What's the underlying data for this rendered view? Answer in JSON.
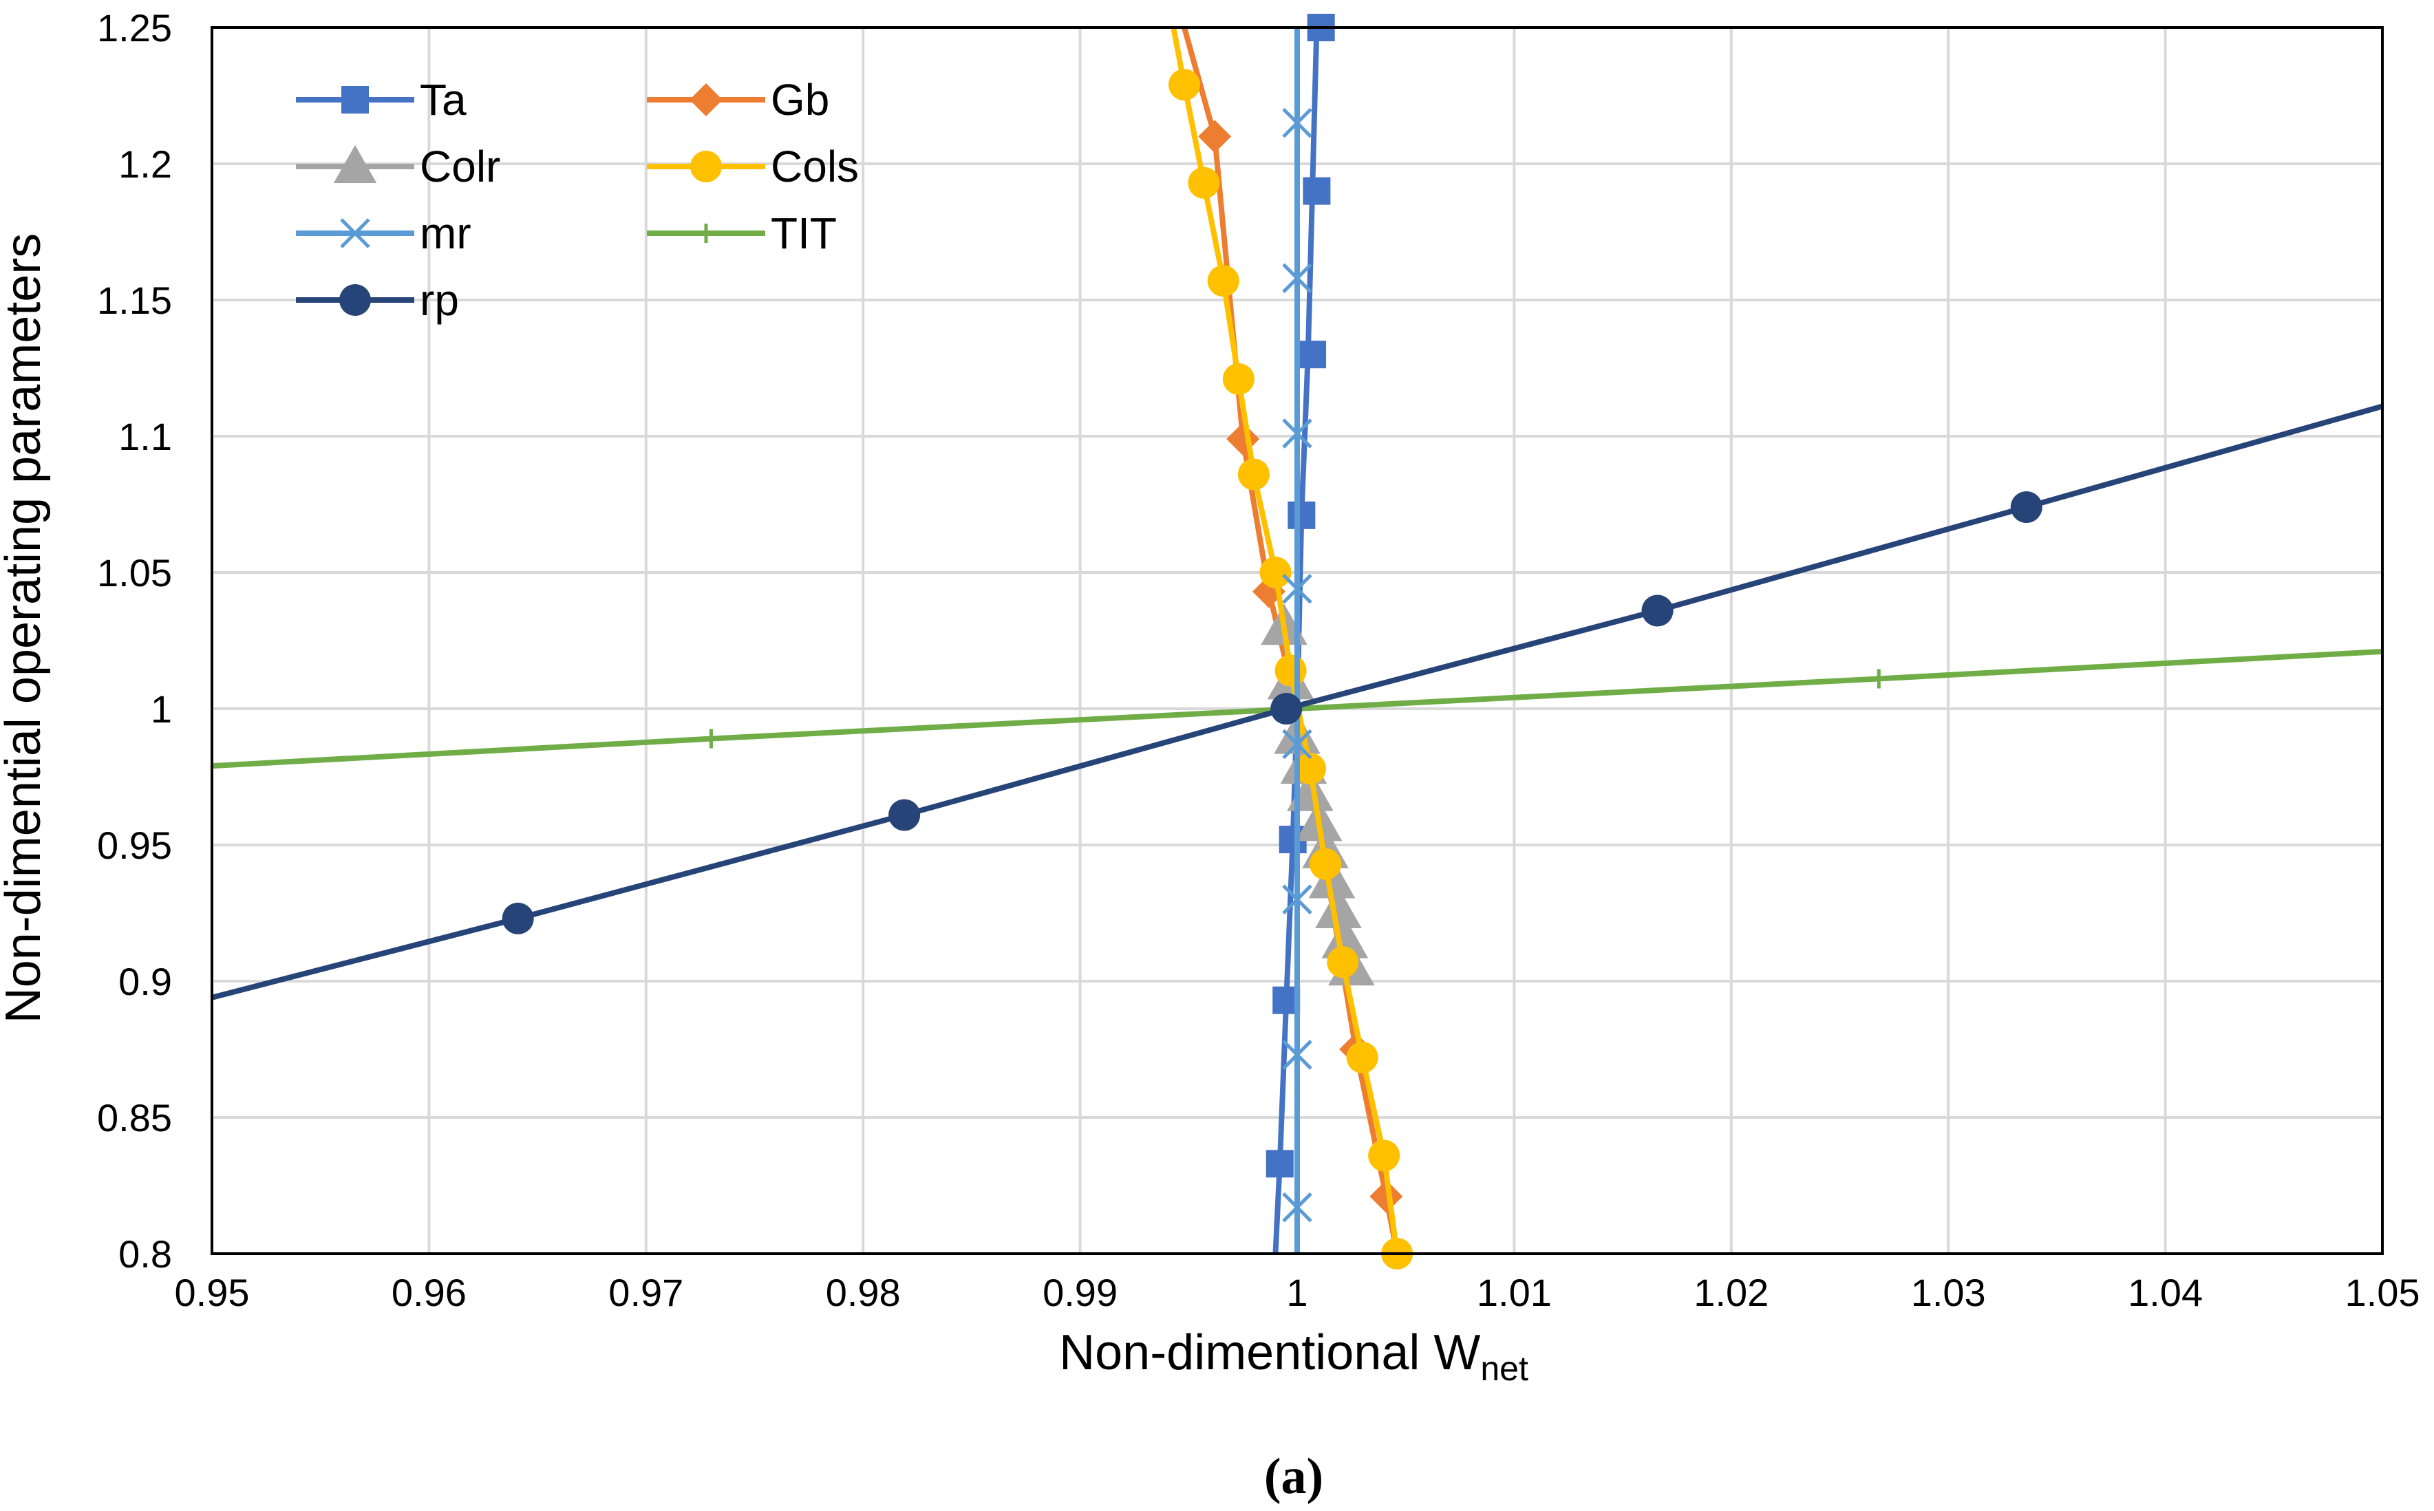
{
  "chart_data": {
    "type": "line",
    "title": "",
    "xlabel": "Non-dimentional W",
    "xlabel_subscript": "net",
    "ylabel": "Non-dimential operating parameters",
    "caption_letter": "a",
    "xlim": [
      0.95,
      1.05
    ],
    "ylim": [
      0.8,
      1.25
    ],
    "x_ticks": [
      "0.95",
      "0.96",
      "0.97",
      "0.98",
      "0.99",
      "1",
      "1.01",
      "1.02",
      "1.03",
      "1.04",
      "1.05"
    ],
    "y_ticks": [
      "0.8",
      "0.85",
      "0.9",
      "0.95",
      "1",
      "1.05",
      "1.1",
      "1.15",
      "1.2",
      "1.25"
    ],
    "grid": true,
    "legend_position": "top-left",
    "series": [
      {
        "name": "Ta",
        "color": "#4472C4",
        "marker": "square",
        "x": [
          0.999,
          0.9992,
          0.9995,
          0.9998,
          1.0,
          1.0002,
          1.0005,
          1.0007,
          1.0009,
          1.0011
        ],
        "y": [
          0.8,
          0.833,
          0.893,
          0.952,
          1.0,
          1.071,
          1.13,
          1.19,
          1.25,
          1.25
        ],
        "marker_x": [
          0.9992,
          0.9995,
          0.9998,
          1.0002,
          1.0007,
          1.0009,
          1.0011
        ],
        "marker_y": [
          0.833,
          0.893,
          0.952,
          1.071,
          1.13,
          1.19,
          1.25
        ]
      },
      {
        "name": "Gb",
        "color": "#ED7D31",
        "marker": "diamond",
        "x": [
          1.0046,
          1.0041,
          1.0027,
          1.0014,
          1.0,
          0.9987,
          0.9975,
          0.9962,
          0.9948
        ],
        "y": [
          0.8,
          0.821,
          0.875,
          0.938,
          1.0,
          1.043,
          1.099,
          1.21,
          1.25
        ],
        "marker_x": [
          1.0041,
          1.0027,
          0.9987,
          0.9975,
          0.9962
        ],
        "marker_y": [
          0.821,
          0.875,
          1.043,
          1.099,
          1.21
        ]
      },
      {
        "name": "Colr",
        "color": "#A5A5A5",
        "marker": "triangle",
        "x": [
          1.0025,
          1.0022,
          1.0019,
          1.0016,
          1.0013,
          1.001,
          1.0006,
          1.0003,
          1.0,
          0.9997,
          0.9994
        ],
        "y": [
          0.905,
          0.915,
          0.926,
          0.937,
          0.948,
          0.958,
          0.969,
          0.979,
          0.99,
          1.01,
          1.03
        ],
        "marker_x": [
          1.0025,
          1.0022,
          1.0019,
          1.0016,
          1.0013,
          1.001,
          1.0006,
          1.0003,
          1.0,
          0.9997,
          0.9994
        ],
        "marker_y": [
          0.905,
          0.915,
          0.926,
          0.937,
          0.948,
          0.958,
          0.969,
          0.979,
          0.99,
          1.01,
          1.03
        ]
      },
      {
        "name": "Cols",
        "color": "#FFC000",
        "marker": "circle",
        "x": [
          1.0046,
          1.004,
          1.003,
          1.0021,
          1.0013,
          1.0006,
          0.9997,
          0.999,
          0.998,
          0.9973,
          0.9966,
          0.9957,
          0.9948,
          0.9943
        ],
        "y": [
          0.8,
          0.836,
          0.872,
          0.907,
          0.943,
          0.978,
          1.014,
          1.05,
          1.086,
          1.121,
          1.157,
          1.193,
          1.229,
          1.25
        ],
        "marker_x": [
          1.0046,
          1.004,
          1.003,
          1.0021,
          1.0013,
          1.0006,
          0.9997,
          0.999,
          0.998,
          0.9973,
          0.9966,
          0.9957,
          0.9948
        ],
        "marker_y": [
          0.8,
          0.836,
          0.872,
          0.907,
          0.943,
          0.978,
          1.014,
          1.05,
          1.086,
          1.121,
          1.157,
          1.193,
          1.229
        ]
      },
      {
        "name": "mr",
        "color": "#5B9BD5",
        "marker": "x",
        "x": [
          1.0,
          1.0,
          1.0,
          1.0,
          1.0,
          1.0,
          1.0,
          1.0,
          1.0,
          1.0
        ],
        "y": [
          0.8,
          0.817,
          0.873,
          0.93,
          0.987,
          1.044,
          1.101,
          1.158,
          1.215,
          1.25
        ],
        "marker_x": [
          1.0,
          1.0,
          1.0,
          1.0,
          1.0,
          1.0,
          1.0,
          1.0
        ],
        "marker_y": [
          0.817,
          0.873,
          0.93,
          0.987,
          1.044,
          1.101,
          1.158,
          1.215
        ]
      },
      {
        "name": "TIT",
        "color": "#70AD47",
        "marker": "plus",
        "x": [
          0.95,
          0.973,
          1.0,
          1.0268,
          1.05
        ],
        "y": [
          0.979,
          0.989,
          1.0,
          1.011,
          1.021
        ],
        "marker_x": [
          0.973,
          1.0268
        ],
        "marker_y": [
          0.989,
          1.011
        ]
      },
      {
        "name": "rp",
        "color": "#264478",
        "marker": "circle",
        "x": [
          0.95,
          0.9641,
          0.9819,
          0.9995,
          1.0166,
          1.0336,
          1.05
        ],
        "y": [
          0.894,
          0.923,
          0.961,
          1.0,
          1.036,
          1.074,
          1.111
        ],
        "marker_x": [
          0.9641,
          0.9819,
          0.9995,
          1.0166,
          1.0336
        ],
        "marker_y": [
          0.923,
          0.961,
          1.0,
          1.036,
          1.074
        ]
      }
    ]
  }
}
